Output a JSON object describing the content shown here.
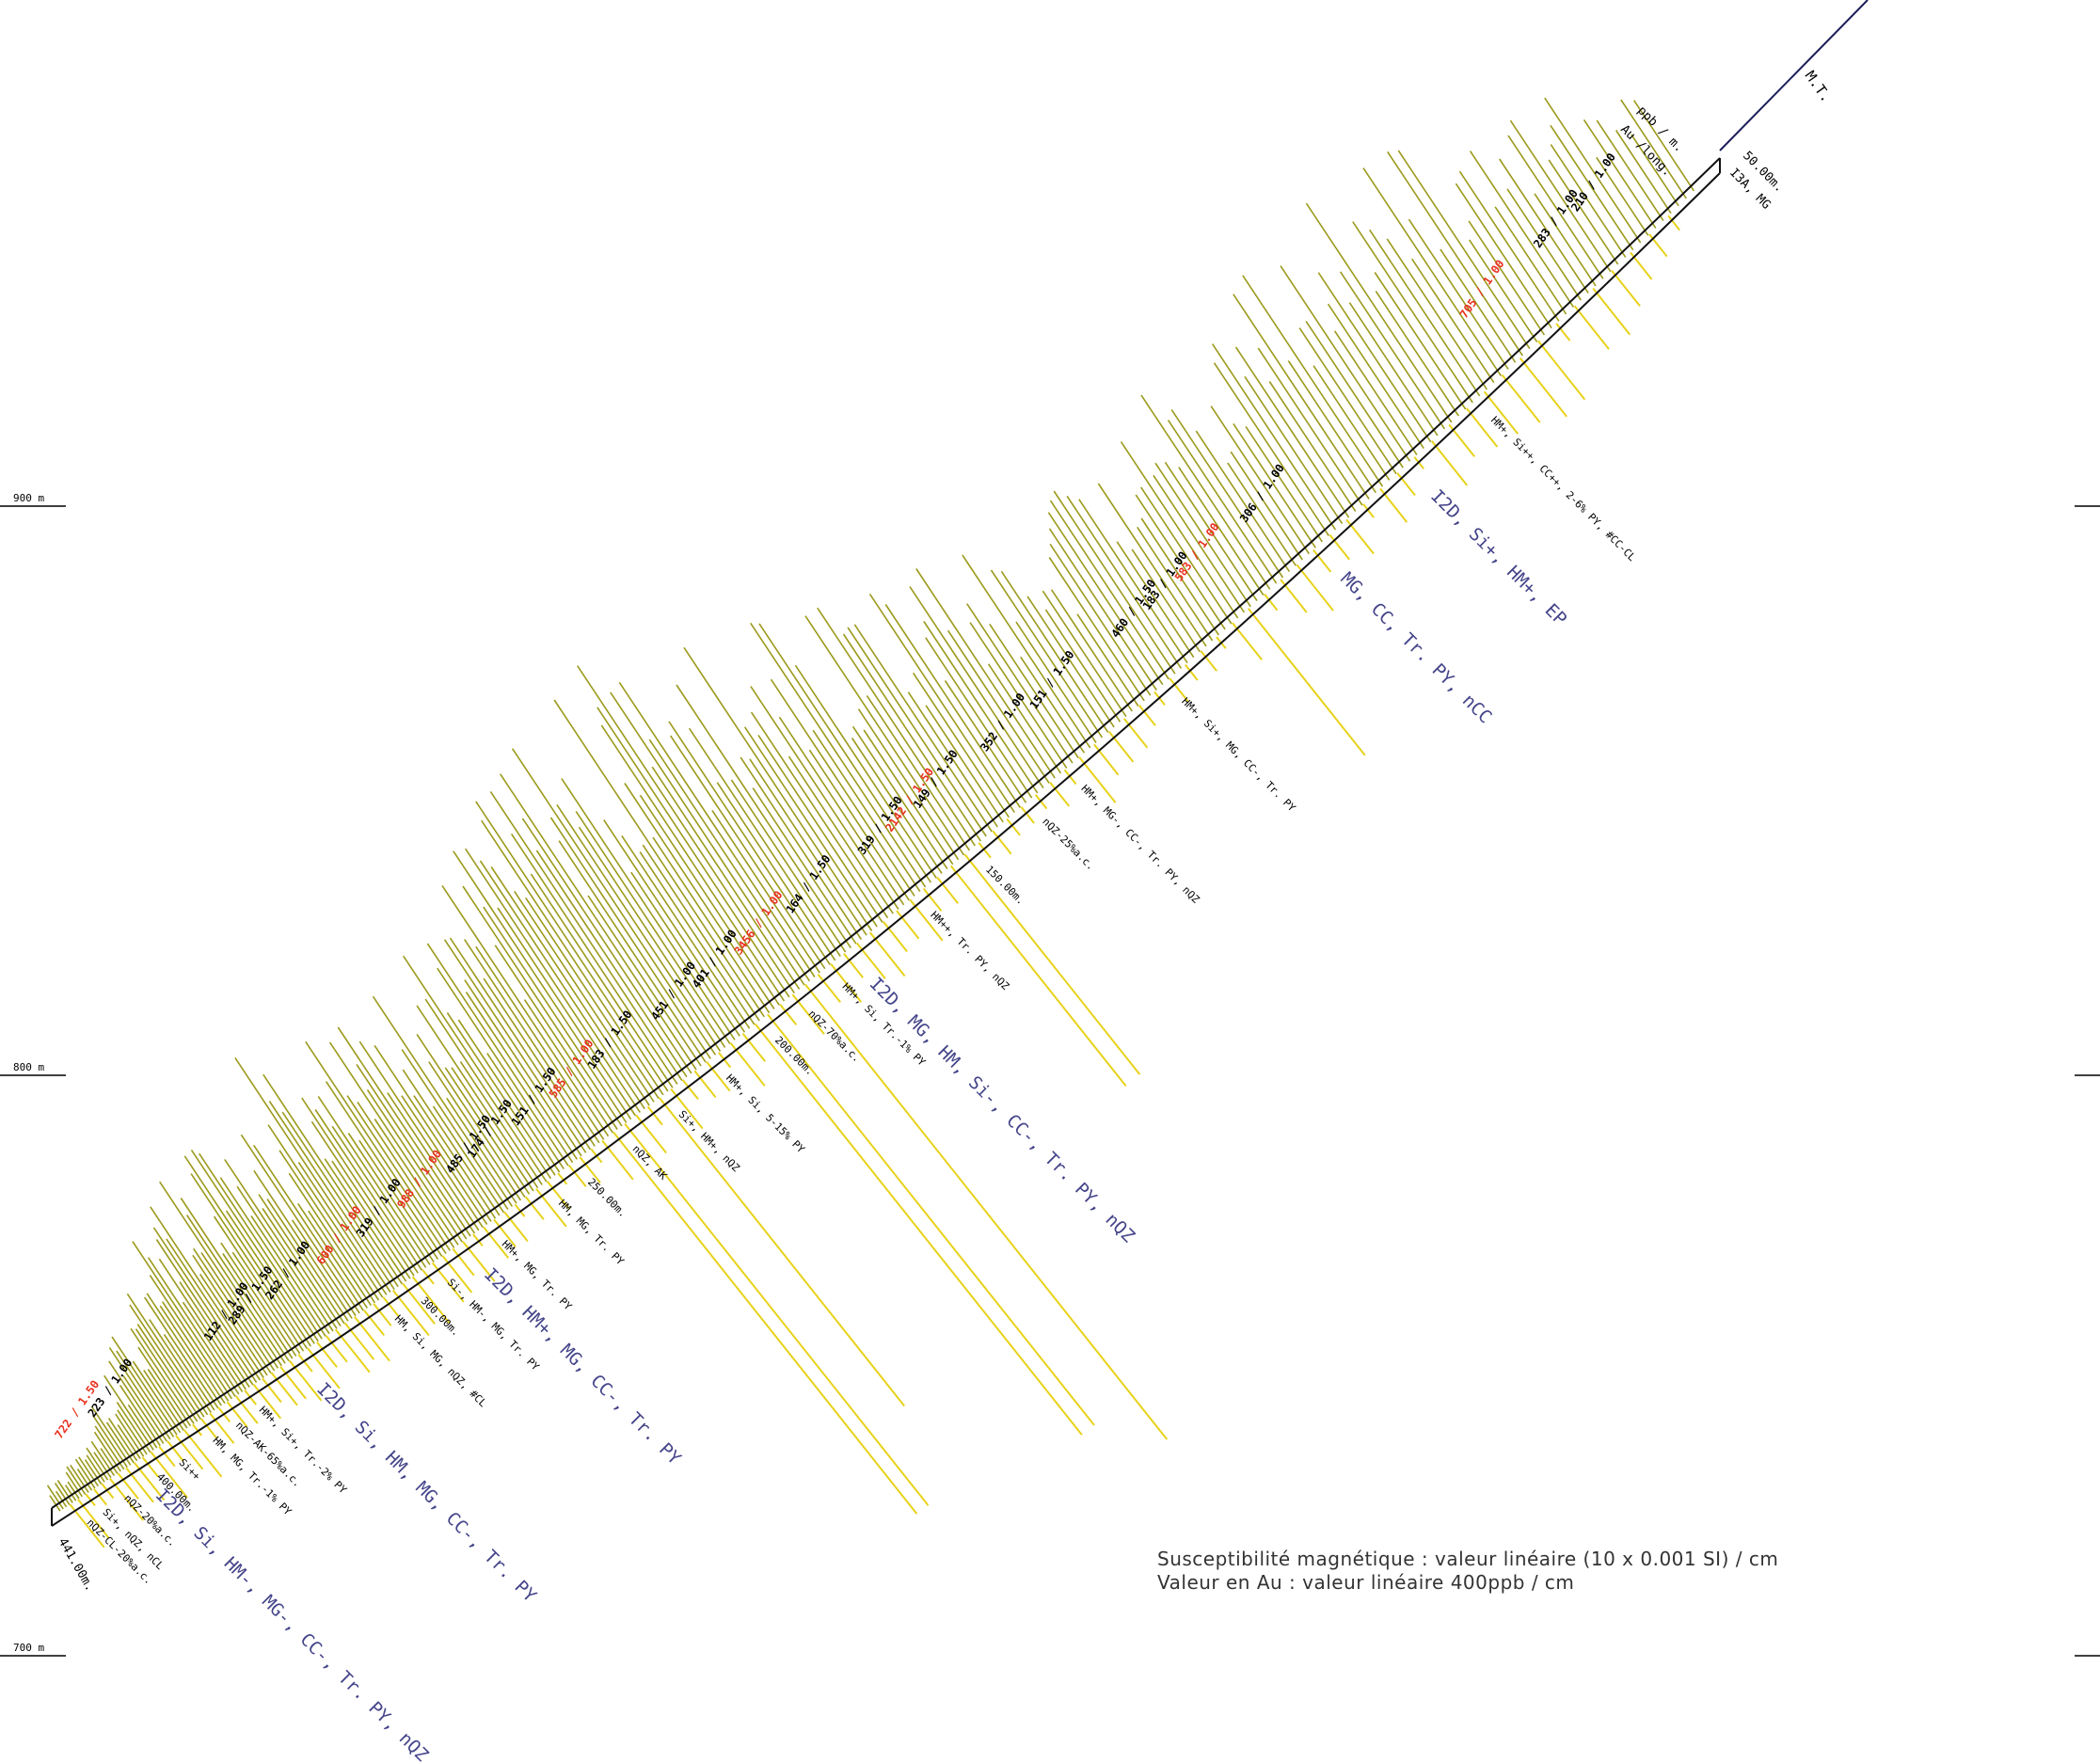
{
  "elevations": [
    {
      "label": "900 m",
      "value": 900
    },
    {
      "label": "800 m",
      "value": 800
    },
    {
      "label": "700 m",
      "value": 700
    }
  ],
  "hole": {
    "collar_label": "M.T.",
    "header": [
      "ppb / m.",
      "Au /long."
    ],
    "collar_depth": "50.00m.",
    "collar_lith": "I3A, MG",
    "end_depth": "441.00m."
  },
  "colors": {
    "susceptibility": "#9c9a1c",
    "gold": "#e8d21a",
    "trace": "#1c1c5a",
    "high_assay": "#e8321e",
    "lithology": "#44448a"
  },
  "assays": [
    {
      "text": "210 / 1.00",
      "t": 0.03,
      "high": false
    },
    {
      "text": "283 / 1.00",
      "t": 0.045,
      "high": false
    },
    {
      "text": "705 / 1.00",
      "t": 0.075,
      "high": true
    },
    {
      "text": "306 / 1.00",
      "t": 0.17,
      "high": false
    },
    {
      "text": "583 / 1.00",
      "t": 0.2,
      "high": true
    },
    {
      "text": "183 / 1.00",
      "t": 0.215,
      "high": false
    },
    {
      "text": "460 / 1.50",
      "t": 0.23,
      "high": false
    },
    {
      "text": "151 / 1.50",
      "t": 0.27,
      "high": false
    },
    {
      "text": "352 / 1.00",
      "t": 0.295,
      "high": false
    },
    {
      "text": "149 / 1.50",
      "t": 0.33,
      "high": false
    },
    {
      "text": "2142 / 1.50",
      "t": 0.345,
      "high": true
    },
    {
      "text": "319 / 1.50",
      "t": 0.36,
      "high": false
    },
    {
      "text": "164 / 1.50",
      "t": 0.4,
      "high": false
    },
    {
      "text": "3456 / 1.00",
      "t": 0.43,
      "high": true
    },
    {
      "text": "401 / 1.00",
      "t": 0.455,
      "high": false
    },
    {
      "text": "451 / 1.00",
      "t": 0.48,
      "high": false
    },
    {
      "text": "183 / 1.50",
      "t": 0.52,
      "high": false
    },
    {
      "text": "585 / 1.00",
      "t": 0.545,
      "high": true
    },
    {
      "text": "151 / 1.50",
      "t": 0.57,
      "high": false
    },
    {
      "text": "174 / 1.50",
      "t": 0.6,
      "high": false
    },
    {
      "text": "485 / 1.50",
      "t": 0.615,
      "high": false
    },
    {
      "text": "988 / 1.00",
      "t": 0.65,
      "high": true
    },
    {
      "text": "319 / 1.00",
      "t": 0.68,
      "high": false
    },
    {
      "text": "600 / 1.00",
      "t": 0.71,
      "high": true
    },
    {
      "text": "262 / 1.00",
      "t": 0.75,
      "high": false
    },
    {
      "text": "289 / 1.50",
      "t": 0.78,
      "high": false
    },
    {
      "text": "112 / 1.00",
      "t": 0.8,
      "high": false
    },
    {
      "text": "223 / 1.00",
      "t": 0.9,
      "high": false
    },
    {
      "text": "722 / 1.50",
      "t": 0.93,
      "high": true
    }
  ],
  "lith_small": [
    {
      "text": "HM+, Si++, CC++, 2-6% PY, #CC-CL",
      "t": 0.1
    },
    {
      "text": "HM+, Si+, MG, CC-, Tr. PY",
      "t": 0.24
    },
    {
      "text": "HM+, MG-, CC-, Tr. PY, nQZ",
      "t": 0.29
    },
    {
      "text": "nQZ-25%a.c.",
      "t": 0.31
    },
    {
      "text": "150.00m.",
      "t": 0.34
    },
    {
      "text": "HM++, Tr. PY, nQZ",
      "t": 0.37
    },
    {
      "text": "HM+, Si, Tr.-1% PY",
      "t": 0.42
    },
    {
      "text": "nQZ-70%a.c.",
      "t": 0.44
    },
    {
      "text": "200.00m.",
      "t": 0.46
    },
    {
      "text": "HM+, Si, 5-15% PY",
      "t": 0.49
    },
    {
      "text": "Si+, HM+, nQZ",
      "t": 0.52
    },
    {
      "text": "nQZ, AK",
      "t": 0.55
    },
    {
      "text": "250.00m.",
      "t": 0.58
    },
    {
      "text": "HM, MG, Tr. PY",
      "t": 0.6
    },
    {
      "text": "HM+, MG, Tr. PY",
      "t": 0.64
    },
    {
      "text": "Si-, HM-, MG, Tr. PY",
      "t": 0.68
    },
    {
      "text": "300.00m.",
      "t": 0.7
    },
    {
      "text": "HM, Si, MG, nQZ, #CL",
      "t": 0.72
    },
    {
      "text": "HM+, Si+, Tr.-2% PY",
      "t": 0.83
    },
    {
      "text": "nQZ-AK-65%a.c.",
      "t": 0.85
    },
    {
      "text": "HM, MG, Tr.-1% PY",
      "t": 0.87
    },
    {
      "text": "400.00m.",
      "t": 0.92
    },
    {
      "text": "Si++",
      "t": 0.9
    },
    {
      "text": "nQZ-20%a.c.",
      "t": 0.95
    },
    {
      "text": "Si+, nQZ, nCL",
      "t": 0.97
    },
    {
      "text": "nQZ-CL-20%a.c.",
      "t": 0.985
    }
  ],
  "lith_big": [
    {
      "text": "I2D, Si+, HM+, EP",
      "t": 0.13
    },
    {
      "text": "MG, CC, Tr. PY, nCC",
      "t": 0.17
    },
    {
      "text": "I2D, MG, HM, Si-, CC-, Tr. PY, nQZ",
      "t": 0.41
    },
    {
      "text": "I2D, HM+, MG, CC-, Tr. PY",
      "t": 0.66
    },
    {
      "text": "I2D, Si, HM, MG, CC-, Tr. PY",
      "t": 0.79
    },
    {
      "text": "I2D, Si, HM-, MG-, CC-, Tr. PY, nQZ",
      "t": 0.93
    }
  ],
  "legend": {
    "line1": "Susceptibilité magnétique : valeur linéaire (10 x 0.001 SI) / cm",
    "line2": "Valeur en Au : valeur linéaire 400ppb / cm"
  }
}
